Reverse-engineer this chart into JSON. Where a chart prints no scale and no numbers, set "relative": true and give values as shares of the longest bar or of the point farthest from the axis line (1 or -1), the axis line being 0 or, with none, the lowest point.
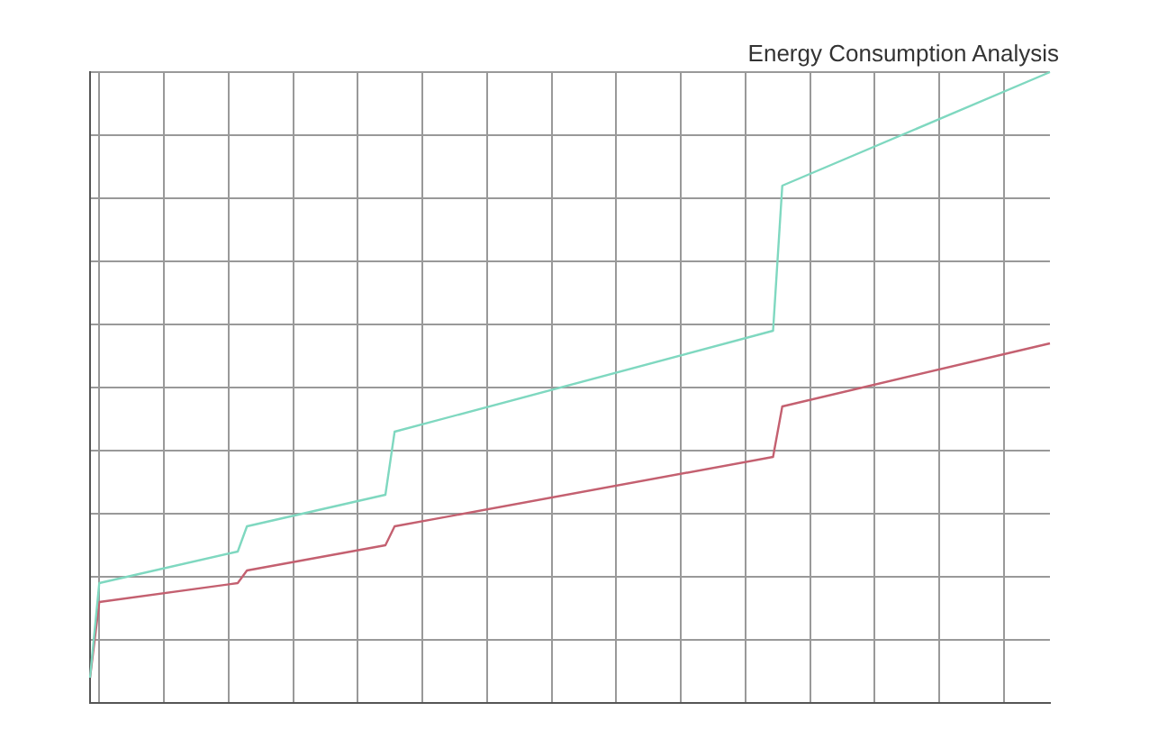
{
  "chart_data": {
    "type": "line",
    "title": "Energy Consumption Analysis",
    "relative": true,
    "grid": true,
    "tick_labels": false,
    "marker": "none",
    "line_style": "solid",
    "categories": [
      null,
      null,
      null,
      null,
      null,
      null,
      null,
      null,
      null,
      null,
      null,
      null,
      null,
      null,
      null,
      null,
      null,
      null,
      null,
      null,
      null,
      null,
      null,
      null,
      null,
      null,
      null,
      null,
      null,
      null,
      null,
      null,
      null,
      null,
      null,
      null,
      null,
      null,
      null,
      null,
      null,
      null,
      null,
      null,
      null,
      null,
      null,
      null,
      null,
      null,
      null,
      null,
      null,
      null,
      null,
      null,
      null,
      null,
      null,
      null,
      null,
      null,
      null,
      null,
      null,
      null,
      null,
      null,
      null,
      null,
      null,
      null,
      null,
      null,
      null,
      null,
      null,
      null,
      null,
      null,
      null,
      null,
      null,
      null,
      null,
      null,
      null,
      null,
      null,
      null,
      null,
      null,
      null,
      null,
      null,
      null,
      null,
      null,
      null,
      null,
      null,
      null,
      null,
      null,
      null
    ],
    "series": [
      {
        "color": "#7fd8c0",
        "values": [
          0.04,
          0.19,
          null,
          null,
          null,
          null,
          null,
          null,
          null,
          null,
          null,
          null,
          null,
          null,
          null,
          null,
          0.24,
          0.28,
          null,
          null,
          null,
          null,
          null,
          null,
          null,
          null,
          null,
          null,
          null,
          null,
          null,
          null,
          0.33,
          0.43,
          null,
          null,
          null,
          null,
          null,
          null,
          null,
          null,
          null,
          null,
          null,
          null,
          null,
          null,
          null,
          null,
          null,
          null,
          null,
          null,
          null,
          null,
          null,
          null,
          null,
          null,
          null,
          null,
          null,
          null,
          null,
          null,
          null,
          null,
          null,
          null,
          null,
          null,
          null,
          null,
          0.59,
          0.82,
          null,
          null,
          null,
          null,
          null,
          null,
          null,
          null,
          null,
          null,
          null,
          null,
          null,
          null,
          null,
          null,
          null,
          null,
          null,
          null,
          null,
          null,
          null,
          null,
          null,
          null,
          null,
          null,
          1
        ]
      },
      {
        "color": "#c46070",
        "values": [
          0.04,
          0.16,
          null,
          null,
          null,
          null,
          null,
          null,
          null,
          null,
          null,
          null,
          null,
          null,
          null,
          null,
          0.19,
          0.21,
          null,
          null,
          null,
          null,
          null,
          null,
          null,
          null,
          null,
          null,
          null,
          null,
          null,
          null,
          0.25,
          0.28,
          null,
          null,
          null,
          null,
          null,
          null,
          null,
          null,
          null,
          null,
          null,
          null,
          null,
          null,
          null,
          null,
          null,
          null,
          null,
          null,
          null,
          null,
          null,
          null,
          null,
          null,
          null,
          null,
          null,
          null,
          null,
          null,
          null,
          null,
          null,
          null,
          null,
          null,
          null,
          null,
          0.39,
          0.47,
          null,
          null,
          null,
          null,
          null,
          null,
          null,
          null,
          null,
          null,
          null,
          null,
          null,
          null,
          null,
          null,
          null,
          null,
          null,
          null,
          null,
          null,
          null,
          null,
          null,
          null,
          null,
          null,
          0.57
        ]
      }
    ]
  }
}
